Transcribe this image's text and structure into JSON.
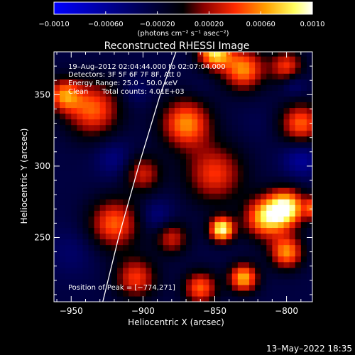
{
  "chart_data": {
    "type": "heatmap",
    "title": "Reconstructed RHESSI Image",
    "xlabel": "Heliocentric X (arcsec)",
    "ylabel": "Heliocentric Y (arcsec)",
    "xlim": [
      -962,
      -782
    ],
    "ylim": [
      205,
      380
    ],
    "x_ticks": [
      -950,
      -900,
      -850,
      -800
    ],
    "x_tick_labels": [
      "−950",
      "−900",
      "−850",
      "−800"
    ],
    "y_ticks": [
      250,
      300,
      350
    ],
    "y_tick_labels": [
      "250",
      "300",
      "350"
    ],
    "colorbar": {
      "range": [
        -0.001,
        0.001
      ],
      "ticks": [
        -0.001,
        -0.0006,
        -0.0002,
        0.0002,
        0.0006,
        0.001
      ],
      "tick_labels": [
        "−0.0010",
        "−0.00060",
        "−0.00020",
        "0.00020",
        "0.00060",
        "0.0010"
      ],
      "unit_label": "(photons cm⁻² s⁻¹ asec⁻²)",
      "stops": [
        "#0000ff",
        "#000000",
        "#8b0000",
        "#ff2a00",
        "#ffa000",
        "#ffff60",
        "#ffffff"
      ]
    },
    "annotations": [
      "19–Aug–2012 02:04:44.000 to 02:07:04.000",
      "Detectors: 3F 5F 6F 7F 8F, Att 0",
      "Energy Range: 25.0 – 50.0 keV",
      "Clean      Total counts: 4.01E+03"
    ],
    "peak_label": "Position of Peak = [−774,271]",
    "peak": [
      -774,
      271
    ],
    "limb_curve": [
      [
        -928,
        205
      ],
      [
        -917,
        250
      ],
      [
        -903,
        300
      ],
      [
        -888,
        350
      ],
      [
        -877,
        380
      ]
    ],
    "timestamp": "13–May–2022 18:35",
    "grid": false,
    "hot_spots": [
      {
        "x": -845,
        "y": 256,
        "intensity": 0.00095,
        "radius": 6
      },
      {
        "x": -800,
        "y": 271,
        "intensity": 0.0009,
        "radius": 9
      },
      {
        "x": -776,
        "y": 271,
        "intensity": 0.001,
        "radius": 6
      },
      {
        "x": -815,
        "y": 264,
        "intensity": 0.0007,
        "radius": 10
      },
      {
        "x": -800,
        "y": 240,
        "intensity": 0.0006,
        "radius": 8
      },
      {
        "x": -830,
        "y": 222,
        "intensity": 0.0007,
        "radius": 7
      },
      {
        "x": -850,
        "y": 380,
        "intensity": 0.0008,
        "radius": 8
      },
      {
        "x": -830,
        "y": 368,
        "intensity": 0.0006,
        "radius": 10
      },
      {
        "x": -870,
        "y": 330,
        "intensity": 0.0006,
        "radius": 12
      },
      {
        "x": -850,
        "y": 295,
        "intensity": 0.0004,
        "radius": 14
      },
      {
        "x": -935,
        "y": 340,
        "intensity": 0.0005,
        "radius": 13
      },
      {
        "x": -955,
        "y": 350,
        "intensity": 0.0005,
        "radius": 8
      },
      {
        "x": -920,
        "y": 260,
        "intensity": 0.0005,
        "radius": 12
      },
      {
        "x": -900,
        "y": 295,
        "intensity": 0.0003,
        "radius": 9
      },
      {
        "x": -905,
        "y": 222,
        "intensity": 0.0004,
        "radius": 10
      },
      {
        "x": -880,
        "y": 250,
        "intensity": 0.0003,
        "radius": 8
      },
      {
        "x": -790,
        "y": 330,
        "intensity": 0.0005,
        "radius": 10
      },
      {
        "x": -800,
        "y": 370,
        "intensity": 0.0004,
        "radius": 8
      },
      {
        "x": -860,
        "y": 215,
        "intensity": 0.0005,
        "radius": 8
      },
      {
        "x": -950,
        "y": 240,
        "intensity": -0.0004,
        "radius": 12
      },
      {
        "x": -920,
        "y": 305,
        "intensity": -0.0005,
        "radius": 9
      },
      {
        "x": -890,
        "y": 265,
        "intensity": -0.0005,
        "radius": 8
      },
      {
        "x": -790,
        "y": 305,
        "intensity": -0.0006,
        "radius": 9
      },
      {
        "x": -905,
        "y": 352,
        "intensity": -0.0004,
        "radius": 7
      },
      {
        "x": -795,
        "y": 358,
        "intensity": -0.0005,
        "radius": 6
      },
      {
        "x": -820,
        "y": 330,
        "intensity": -0.0003,
        "radius": 8
      },
      {
        "x": -860,
        "y": 355,
        "intensity": -0.0003,
        "radius": 6
      }
    ]
  }
}
